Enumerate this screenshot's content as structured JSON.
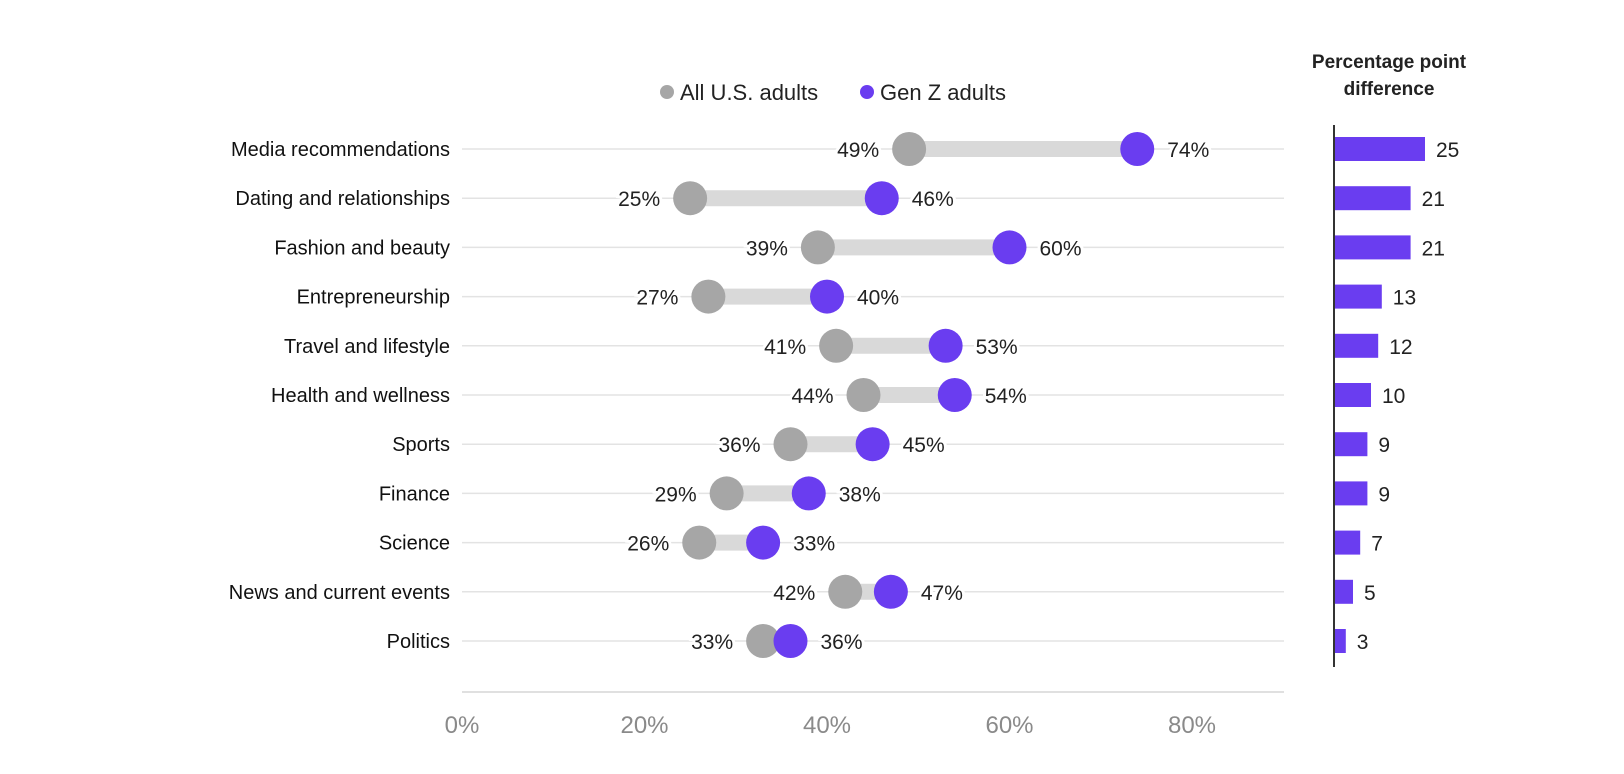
{
  "chart_data": [
    {
      "type": "dumbbell",
      "legend": [
        {
          "name": "All U.S. adults",
          "color": "#a6a6a6"
        },
        {
          "name": "Gen Z adults",
          "color": "#6a3df0"
        }
      ],
      "legend_position": "top",
      "categories": [
        "Media recommendations",
        "Dating and relationships",
        "Fashion and beauty",
        "Entrepreneurship",
        "Travel and lifestyle",
        "Health and wellness",
        "Sports",
        "Finance",
        "Science",
        "News and current events",
        "Politics"
      ],
      "series": [
        {
          "name": "All U.S. adults",
          "values": [
            49,
            25,
            39,
            27,
            41,
            44,
            36,
            29,
            26,
            42,
            33
          ]
        },
        {
          "name": "Gen Z adults",
          "values": [
            74,
            46,
            60,
            40,
            53,
            54,
            45,
            38,
            33,
            47,
            36
          ]
        }
      ],
      "value_suffix": "%",
      "xlim": [
        0,
        90
      ],
      "x_ticks": [
        "0%",
        "20%",
        "40%",
        "60%",
        "80%"
      ],
      "x_tick_values": [
        0,
        20,
        40,
        60,
        80
      ],
      "grid": true,
      "colors": {
        "connector": "#d9d9d9",
        "gridline": "#e3e3e3"
      }
    },
    {
      "type": "bar",
      "orientation": "horizontal",
      "title": "Percentage point difference",
      "categories": [
        "Media recommendations",
        "Dating and relationships",
        "Fashion and beauty",
        "Entrepreneurship",
        "Travel and lifestyle",
        "Health and wellness",
        "Sports",
        "Finance",
        "Science",
        "News and current events",
        "Politics"
      ],
      "values": [
        25,
        21,
        21,
        13,
        12,
        10,
        9,
        9,
        7,
        5,
        3
      ],
      "color": "#6a3df0"
    }
  ]
}
